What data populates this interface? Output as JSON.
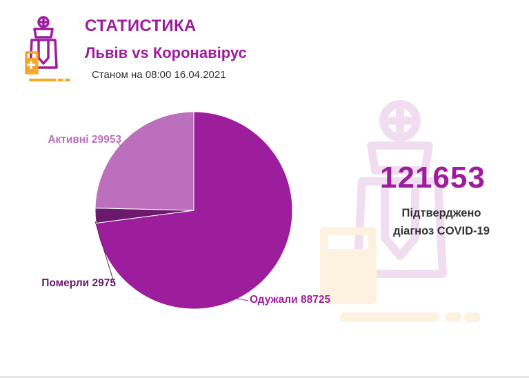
{
  "header": {
    "title": "СТАТИСТИКА",
    "subtitle": "Львів vs Коронавірус",
    "date_label": "Станом на 08:00 16.04.2021"
  },
  "summary": {
    "total": "121653",
    "caption_line1": "Підтверджено",
    "caption_line2": "діагноз COVID-19"
  },
  "chart_data": {
    "type": "pie",
    "title": "",
    "slices": [
      {
        "label": "Одужали",
        "value": 88725,
        "color": "#9c1e9c"
      },
      {
        "label": "Померли",
        "value": 2975,
        "color": "#6b1a6b"
      },
      {
        "label": "Активні",
        "value": 29953,
        "color": "#bc6fbc"
      }
    ]
  },
  "colors": {
    "brand": "#9c1e9c",
    "accent_orange": "#f5a623",
    "text_dark": "#333333"
  },
  "icons": {
    "logo": "doctor-icon",
    "watermark": "doctor-icon"
  }
}
